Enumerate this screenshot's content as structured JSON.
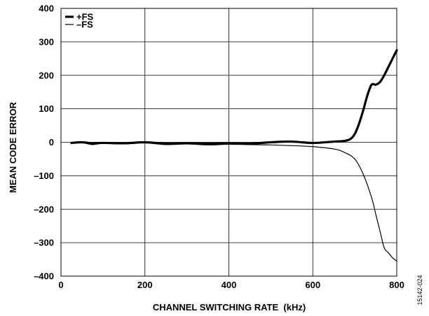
{
  "chart_data": {
    "type": "line",
    "xlabel": "CHANNEL SWITCHING RATE  (kHz)",
    "ylabel": "MEAN CODE ERROR",
    "xlim": [
      0,
      800
    ],
    "ylim": [
      -400,
      400
    ],
    "x_ticks": [
      0,
      200,
      400,
      600,
      800
    ],
    "y_ticks": [
      400,
      300,
      200,
      100,
      0,
      -100,
      -200,
      -300,
      -400
    ],
    "x_tick_labels": [
      "0",
      "200",
      "400",
      "600",
      "800"
    ],
    "y_tick_labels": [
      "400",
      "300",
      "200",
      "100",
      "0",
      "–100",
      "–200",
      "–300",
      "–400"
    ],
    "grid": true,
    "legend_position": "top-left",
    "series": [
      {
        "name": "+FS",
        "style": "thick",
        "color": "#000000",
        "x": [
          25,
          50,
          75,
          100,
          150,
          200,
          250,
          300,
          350,
          400,
          450,
          500,
          550,
          600,
          650,
          675,
          690,
          700,
          710,
          720,
          730,
          740,
          750,
          760,
          770,
          780,
          790,
          800
        ],
        "y": [
          -2,
          0,
          -3,
          -2,
          -3,
          0,
          -4,
          -3,
          -4,
          -3,
          -4,
          0,
          2,
          -2,
          2,
          4,
          10,
          25,
          55,
          95,
          140,
          172,
          172,
          180,
          200,
          225,
          250,
          275
        ]
      },
      {
        "name": "–FS",
        "style": "thin",
        "color": "#000000",
        "x": [
          25,
          50,
          75,
          100,
          150,
          200,
          250,
          300,
          350,
          400,
          450,
          500,
          550,
          600,
          650,
          675,
          700,
          720,
          740,
          750,
          760,
          770,
          780,
          790,
          800
        ],
        "y": [
          -2,
          -1,
          -7,
          -3,
          -5,
          -2,
          -7,
          -5,
          -8,
          -6,
          -7,
          -8,
          -10,
          -13,
          -20,
          -30,
          -50,
          -95,
          -165,
          -215,
          -265,
          -315,
          -330,
          -345,
          -355
        ]
      }
    ]
  },
  "figure_id": "15142-024"
}
